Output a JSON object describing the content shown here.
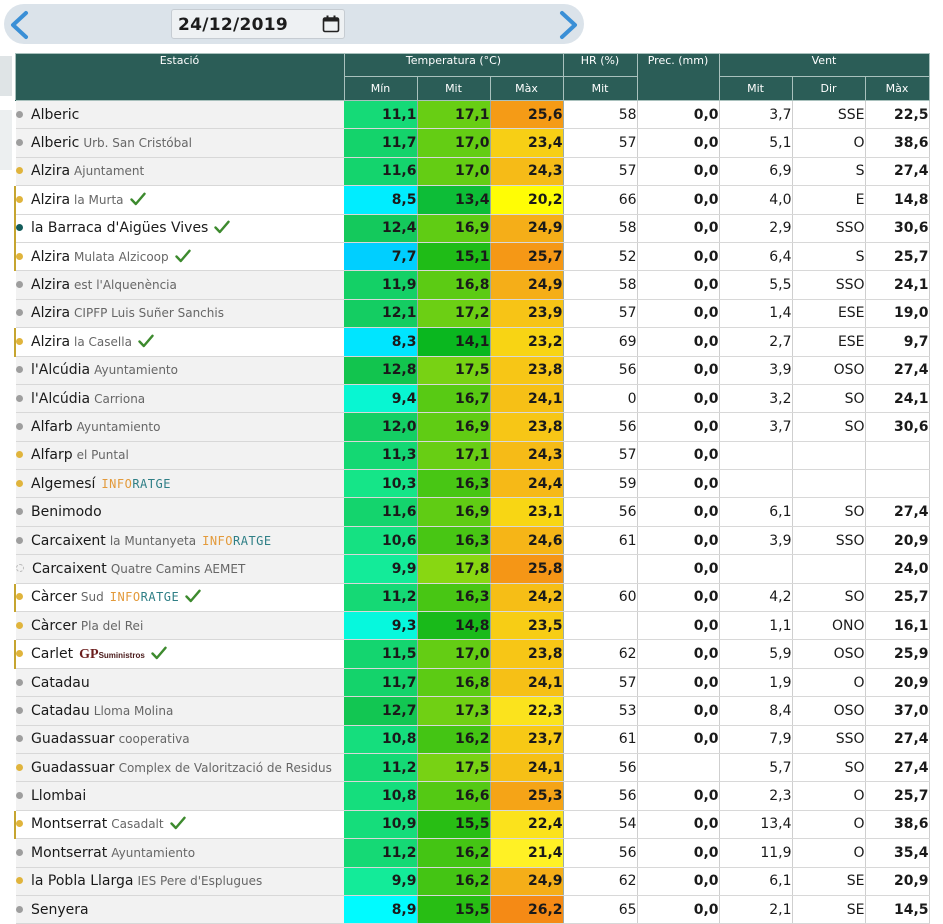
{
  "date": "24/12/2019",
  "icons": {
    "prev": "chevron-left-icon",
    "next": "chevron-right-icon",
    "calendar": "calendar-icon",
    "verified": "checkmark-icon"
  },
  "header": {
    "station": "Estació",
    "temperature": "Temperatura (°C)",
    "humidity": "HR (%)",
    "precip": "Prec. (mm)",
    "wind": "Vent",
    "min": "Mín",
    "mit": "Mit",
    "max": "Màx",
    "hr_mit": "Mit",
    "w_mit": "Mit",
    "w_dir": "Dir",
    "w_max": "Màx"
  },
  "colors": {
    "header_bg": "#2b5d57",
    "dot_gray": "#9e9e9e",
    "dot_yellow": "#e0b43c",
    "dot_teal": "#135c5a",
    "check": "#3d8a2e"
  },
  "rows": [
    {
      "name": "Alberic",
      "sub": "",
      "dot": "gray",
      "hl": false,
      "check": false,
      "logo": "",
      "min": "11,1",
      "mit": "17,1",
      "max": "25,6",
      "hr": "58",
      "prec": "0,0",
      "wmit": "3,7",
      "dir": "SSE",
      "wmax": "22,5"
    },
    {
      "name": "Alberic",
      "sub": "Urb. San Cristóbal",
      "dot": "gray",
      "hl": false,
      "check": false,
      "logo": "",
      "min": "11,7",
      "mit": "17,0",
      "max": "23,4",
      "hr": "57",
      "prec": "0,0",
      "wmit": "5,1",
      "dir": "O",
      "wmax": "38,6"
    },
    {
      "name": "Alzira",
      "sub": "Ajuntament",
      "dot": "yellow",
      "hl": false,
      "check": false,
      "logo": "",
      "min": "11,6",
      "mit": "17,0",
      "max": "24,3",
      "hr": "57",
      "prec": "0,0",
      "wmit": "6,9",
      "dir": "S",
      "wmax": "27,4"
    },
    {
      "name": "Alzira",
      "sub": "la Murta",
      "dot": "yellow",
      "hl": true,
      "check": true,
      "logo": "",
      "min": "8,5",
      "mit": "13,4",
      "max": "20,2",
      "hr": "66",
      "prec": "0,0",
      "wmit": "4,0",
      "dir": "E",
      "wmax": "14,8"
    },
    {
      "name": "la Barraca d'Aigües Vives",
      "sub": "",
      "dot": "teal",
      "hl": true,
      "check": true,
      "logo": "",
      "min": "12,4",
      "mit": "16,9",
      "max": "24,9",
      "hr": "58",
      "prec": "0,0",
      "wmit": "2,9",
      "dir": "SSO",
      "wmax": "30,6"
    },
    {
      "name": "Alzira",
      "sub": "Mulata Alzicoop",
      "dot": "yellow",
      "hl": true,
      "check": true,
      "logo": "",
      "min": "7,7",
      "mit": "15,1",
      "max": "25,7",
      "hr": "52",
      "prec": "0,0",
      "wmit": "6,4",
      "dir": "S",
      "wmax": "25,7"
    },
    {
      "name": "Alzira",
      "sub": "est l'Alquenència",
      "dot": "gray",
      "hl": false,
      "check": false,
      "logo": "",
      "min": "11,9",
      "mit": "16,8",
      "max": "24,9",
      "hr": "58",
      "prec": "0,0",
      "wmit": "5,5",
      "dir": "SSO",
      "wmax": "24,1"
    },
    {
      "name": "Alzira",
      "sub": "CIPFP Luis Suñer Sanchis",
      "dot": "gray",
      "hl": false,
      "check": false,
      "logo": "",
      "min": "12,1",
      "mit": "17,2",
      "max": "23,9",
      "hr": "57",
      "prec": "0,0",
      "wmit": "1,4",
      "dir": "ESE",
      "wmax": "19,0"
    },
    {
      "name": "Alzira",
      "sub": "la Casella",
      "dot": "yellow",
      "hl": true,
      "check": true,
      "logo": "",
      "min": "8,3",
      "mit": "14,1",
      "max": "23,2",
      "hr": "69",
      "prec": "0,0",
      "wmit": "2,7",
      "dir": "ESE",
      "wmax": "9,7"
    },
    {
      "name": "l'Alcúdia",
      "sub": "Ayuntamiento",
      "dot": "gray",
      "hl": false,
      "check": false,
      "logo": "",
      "min": "12,8",
      "mit": "17,5",
      "max": "23,8",
      "hr": "56",
      "prec": "0,0",
      "wmit": "3,9",
      "dir": "OSO",
      "wmax": "27,4"
    },
    {
      "name": "l'Alcúdia",
      "sub": "Carriona",
      "dot": "gray",
      "hl": false,
      "check": false,
      "logo": "",
      "min": "9,4",
      "mit": "16,7",
      "max": "24,1",
      "hr": "0",
      "prec": "0,0",
      "wmit": "3,2",
      "dir": "SO",
      "wmax": "24,1"
    },
    {
      "name": "Alfarb",
      "sub": "Ayuntamiento",
      "dot": "gray",
      "hl": false,
      "check": false,
      "logo": "",
      "min": "12,0",
      "mit": "16,9",
      "max": "23,8",
      "hr": "56",
      "prec": "0,0",
      "wmit": "3,7",
      "dir": "SO",
      "wmax": "30,6"
    },
    {
      "name": "Alfarp",
      "sub": "el Puntal",
      "dot": "yellow",
      "hl": false,
      "check": false,
      "logo": "",
      "min": "11,3",
      "mit": "17,1",
      "max": "24,3",
      "hr": "57",
      "prec": "0,0",
      "wmit": "",
      "dir": "",
      "wmax": ""
    },
    {
      "name": "Algemesí",
      "sub": "",
      "dot": "yellow",
      "hl": false,
      "check": false,
      "logo": "info",
      "min": "10,3",
      "mit": "16,3",
      "max": "24,4",
      "hr": "59",
      "prec": "0,0",
      "wmit": "",
      "dir": "",
      "wmax": ""
    },
    {
      "name": "Benimodo",
      "sub": "",
      "dot": "gray",
      "hl": false,
      "check": false,
      "logo": "",
      "min": "11,6",
      "mit": "16,9",
      "max": "23,1",
      "hr": "56",
      "prec": "0,0",
      "wmit": "6,1",
      "dir": "SO",
      "wmax": "27,4"
    },
    {
      "name": "Carcaixent",
      "sub": "la Muntanyeta",
      "dot": "gray",
      "hl": false,
      "check": false,
      "logo": "info",
      "min": "10,6",
      "mit": "16,3",
      "max": "24,6",
      "hr": "61",
      "prec": "0,0",
      "wmit": "3,9",
      "dir": "SSO",
      "wmax": "20,9"
    },
    {
      "name": "Carcaixent",
      "sub": "Quatre Camins AEMET",
      "dot": "ring",
      "hl": false,
      "check": false,
      "logo": "",
      "min": "9,9",
      "mit": "17,8",
      "max": "25,8",
      "hr": "",
      "prec": "0,0",
      "wmit": "",
      "dir": "",
      "wmax": "24,0"
    },
    {
      "name": "Càrcer",
      "sub": "Sud",
      "dot": "yellow",
      "hl": true,
      "check": true,
      "logo": "info",
      "min": "11,2",
      "mit": "16,3",
      "max": "24,2",
      "hr": "60",
      "prec": "0,0",
      "wmit": "4,2",
      "dir": "SO",
      "wmax": "25,7"
    },
    {
      "name": "Càrcer",
      "sub": "Pla del Rei",
      "dot": "yellow",
      "hl": false,
      "check": false,
      "logo": "",
      "min": "9,3",
      "mit": "14,8",
      "max": "23,5",
      "hr": "",
      "prec": "0,0",
      "wmit": "1,1",
      "dir": "ONO",
      "wmax": "16,1"
    },
    {
      "name": "Carlet",
      "sub": "",
      "dot": "yellow",
      "hl": true,
      "check": true,
      "logo": "gp",
      "min": "11,5",
      "mit": "17,0",
      "max": "23,8",
      "hr": "62",
      "prec": "0,0",
      "wmit": "5,9",
      "dir": "OSO",
      "wmax": "25,9"
    },
    {
      "name": "Catadau",
      "sub": "",
      "dot": "gray",
      "hl": false,
      "check": false,
      "logo": "",
      "min": "11,7",
      "mit": "16,8",
      "max": "24,1",
      "hr": "57",
      "prec": "0,0",
      "wmit": "1,9",
      "dir": "O",
      "wmax": "20,9"
    },
    {
      "name": "Catadau",
      "sub": "Lloma Molina",
      "dot": "gray",
      "hl": false,
      "check": false,
      "logo": "",
      "min": "12,7",
      "mit": "17,3",
      "max": "22,3",
      "hr": "53",
      "prec": "0,0",
      "wmit": "8,4",
      "dir": "OSO",
      "wmax": "37,0"
    },
    {
      "name": "Guadassuar",
      "sub": "cooperativa",
      "dot": "gray",
      "hl": false,
      "check": false,
      "logo": "",
      "min": "10,8",
      "mit": "16,2",
      "max": "23,7",
      "hr": "61",
      "prec": "0,0",
      "wmit": "7,9",
      "dir": "SSO",
      "wmax": "27,4"
    },
    {
      "name": "Guadassuar",
      "sub": "Complex de Valorització de Residus",
      "dot": "yellow",
      "hl": false,
      "check": false,
      "logo": "",
      "min": "11,2",
      "mit": "17,5",
      "max": "24,1",
      "hr": "56",
      "prec": "",
      "wmit": "5,7",
      "dir": "SO",
      "wmax": "27,4"
    },
    {
      "name": "Llombai",
      "sub": "",
      "dot": "gray",
      "hl": false,
      "check": false,
      "logo": "",
      "min": "10,8",
      "mit": "16,6",
      "max": "25,3",
      "hr": "56",
      "prec": "0,0",
      "wmit": "2,3",
      "dir": "O",
      "wmax": "25,7"
    },
    {
      "name": "Montserrat",
      "sub": "Casadalt",
      "dot": "yellow",
      "hl": true,
      "check": true,
      "logo": "",
      "min": "10,9",
      "mit": "15,5",
      "max": "22,4",
      "hr": "54",
      "prec": "0,0",
      "wmit": "13,4",
      "dir": "O",
      "wmax": "38,6"
    },
    {
      "name": "Montserrat",
      "sub": "Ayuntamiento",
      "dot": "gray",
      "hl": false,
      "check": false,
      "logo": "",
      "min": "11,2",
      "mit": "16,2",
      "max": "21,4",
      "hr": "56",
      "prec": "0,0",
      "wmit": "11,9",
      "dir": "O",
      "wmax": "35,4"
    },
    {
      "name": "la Pobla Llarga",
      "sub": "IES Pere d'Esplugues",
      "dot": "yellow",
      "hl": false,
      "check": false,
      "logo": "",
      "min": "9,9",
      "mit": "16,2",
      "max": "24,9",
      "hr": "62",
      "prec": "0,0",
      "wmit": "6,1",
      "dir": "SE",
      "wmax": "20,9"
    },
    {
      "name": "Senyera",
      "sub": "",
      "dot": "gray",
      "hl": false,
      "check": false,
      "logo": "",
      "min": "8,9",
      "mit": "15,5",
      "max": "26,2",
      "hr": "65",
      "prec": "0,0",
      "wmit": "2,1",
      "dir": "SE",
      "wmax": "14,5"
    }
  ]
}
